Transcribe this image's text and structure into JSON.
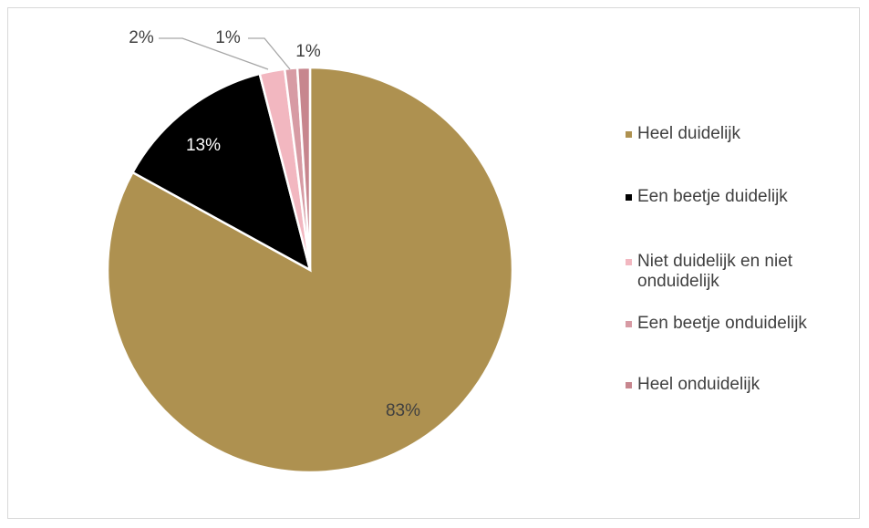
{
  "chart_data": {
    "type": "pie",
    "categories": [
      "Heel duidelijk",
      "Een beetje duidelijk",
      "Niet duidelijk en niet onduidelijk",
      "Een beetje onduidelijk",
      "Heel onduidelijk"
    ],
    "values": [
      83,
      13,
      2,
      1,
      1
    ],
    "labels": [
      "83%",
      "13%",
      "2%",
      "1%",
      "1%"
    ],
    "colors": [
      "#ae9150",
      "#000000",
      "#f2b7c0",
      "#d79ba4",
      "#c7868e"
    ],
    "legend_position": "right"
  }
}
